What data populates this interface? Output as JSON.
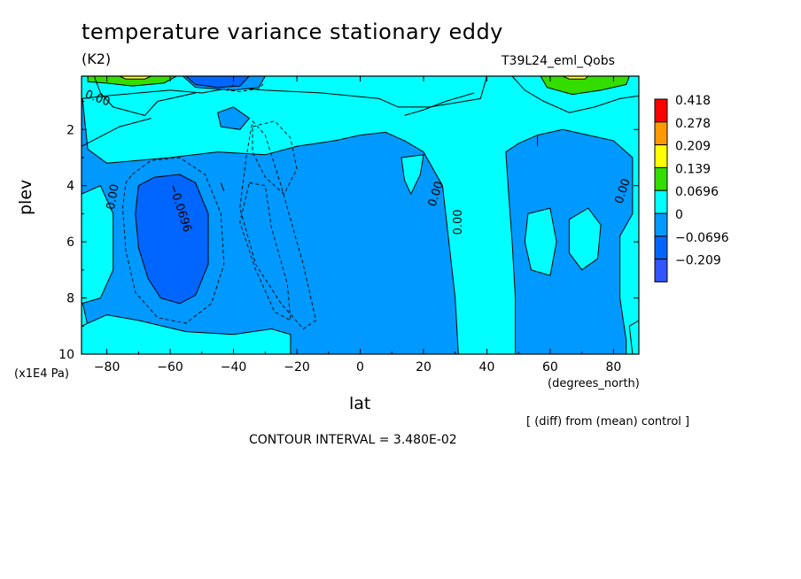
{
  "chart_data": {
    "type": "heatmap",
    "title": "temperature variance stationary eddy",
    "units": "(K2)",
    "dataset": "T39L24_eml_Qobs",
    "xlabel": "lat",
    "xunits": "(degrees_north)",
    "ylabel": "plev",
    "yunits": "(x1E4 Pa)",
    "xlim": [
      -88,
      88
    ],
    "ylim": [
      10,
      0.1
    ],
    "x_ticks": [
      -80,
      -60,
      -40,
      -20,
      0,
      20,
      40,
      60,
      80
    ],
    "x_tick_labels": [
      "−80",
      "−60",
      "−40",
      "−20",
      "0",
      "20",
      "40",
      "60",
      "80"
    ],
    "y_ticks": [
      2,
      4,
      6,
      8,
      10
    ],
    "y_tick_labels": [
      "2",
      "4",
      "6",
      "8",
      "10"
    ],
    "contour_interval_text": "CONTOUR INTERVAL = 3.480E-02",
    "footnote": "[ (diff) from (mean) control ]",
    "legend": {
      "levels": [
        "0.418",
        "0.278",
        "0.209",
        "0.139",
        "0.0696",
        "0",
        "−0.0696",
        "−0.209"
      ],
      "colors": [
        "#ff0000",
        "#ff9900",
        "#ffff00",
        "#33dd00",
        "#00ffff",
        "#0099ff",
        "#0066ff",
        "#3355ff"
      ]
    },
    "contour_labels": [
      {
        "text": "0.00",
        "lon": -83,
        "plev": 0.9,
        "rotate": 20
      },
      {
        "text": "0.00",
        "lon": -78,
        "plev": 4.4,
        "rotate": -80
      },
      {
        "text": "−0.0696",
        "lon": -57,
        "plev": 4.8,
        "rotate": 72
      },
      {
        "text": "0.00",
        "lon": 24,
        "plev": 4.3,
        "rotate": -72
      },
      {
        "text": "0.00",
        "lon": 31,
        "plev": 5.3,
        "rotate": -90
      },
      {
        "text": "0.00",
        "lon": 83,
        "plev": 4.2,
        "rotate": -72
      }
    ],
    "regions": [
      {
        "value": "0",
        "color": "#00ffff",
        "polygon": [
          [
            -88,
            0.1
          ],
          [
            88,
            0.1
          ],
          [
            88,
            10
          ],
          [
            -88,
            10
          ]
        ]
      },
      {
        "value": "0",
        "color": "#0099ff",
        "polygon": [
          [
            -88,
            0.6
          ],
          [
            -86,
            2.7
          ],
          [
            -80,
            3.2
          ],
          [
            -60,
            3.0
          ],
          [
            -45,
            2.8
          ],
          [
            -30,
            2.9
          ],
          [
            -20,
            2.6
          ],
          [
            -8,
            2.4
          ],
          [
            0,
            2.2
          ],
          [
            8,
            2.1
          ],
          [
            14,
            2.4
          ],
          [
            20,
            2.8
          ],
          [
            26,
            4.0
          ],
          [
            28,
            6.0
          ],
          [
            30,
            8.0
          ],
          [
            31,
            10
          ],
          [
            -84,
            10
          ],
          [
            -86,
            9.0
          ],
          [
            -88,
            8.0
          ]
        ]
      },
      {
        "value": "0",
        "color": "#00ffff",
        "polygon": [
          [
            -88,
            0.1
          ],
          [
            40,
            0.1
          ],
          [
            38,
            0.9
          ],
          [
            22,
            1.2
          ],
          [
            12,
            1.2
          ],
          [
            6,
            0.9
          ],
          [
            -12,
            0.7
          ],
          [
            -30,
            0.6
          ],
          [
            -40,
            0.5
          ],
          [
            -50,
            0.7
          ],
          [
            -60,
            0.6
          ],
          [
            -70,
            0.7
          ],
          [
            -80,
            0.8
          ],
          [
            -88,
            0.9
          ]
        ]
      },
      {
        "value": "0",
        "color": "#0099ff",
        "polygon": [
          [
            -45,
            1.4
          ],
          [
            -40,
            1.2
          ],
          [
            -35,
            1.6
          ],
          [
            -38,
            2.0
          ],
          [
            -44,
            1.9
          ]
        ]
      },
      {
        "value": "0",
        "color": "#0099ff",
        "polygon": [
          [
            -56,
            0.1
          ],
          [
            -30,
            0.1
          ],
          [
            -32,
            0.5
          ],
          [
            -40,
            0.6
          ],
          [
            -52,
            0.5
          ]
        ]
      },
      {
        "value": "0",
        "color": "#00ffff",
        "polygon": [
          [
            -88,
            4.3
          ],
          [
            -82,
            4.0
          ],
          [
            -78,
            5.0
          ],
          [
            -78,
            7.0
          ],
          [
            -82,
            8.0
          ],
          [
            -88,
            8.2
          ]
        ]
      },
      {
        "value": "0",
        "color": "#00ffff",
        "polygon": [
          [
            -88,
            9.0
          ],
          [
            -80,
            8.6
          ],
          [
            -70,
            8.8
          ],
          [
            -55,
            9.2
          ],
          [
            -40,
            9.3
          ],
          [
            -28,
            9.1
          ],
          [
            -22,
            9.3
          ],
          [
            -22,
            10
          ],
          [
            -88,
            10
          ]
        ]
      },
      {
        "value": "0",
        "color": "#00ffff",
        "polygon": [
          [
            13,
            3.0
          ],
          [
            20,
            2.9
          ],
          [
            19,
            3.6
          ],
          [
            16,
            4.3
          ],
          [
            14,
            3.8
          ]
        ]
      },
      {
        "value": "0",
        "color": "#0099ff",
        "polygon": [
          [
            46,
            2.8
          ],
          [
            50,
            2.5
          ],
          [
            56,
            2.2
          ],
          [
            64,
            2.0
          ],
          [
            72,
            2.2
          ],
          [
            80,
            2.4
          ],
          [
            86,
            3.0
          ],
          [
            86,
            5.0
          ],
          [
            82,
            5.8
          ],
          [
            82,
            8.0
          ],
          [
            84,
            9.5
          ],
          [
            84,
            10
          ],
          [
            49,
            10
          ],
          [
            49,
            8.0
          ],
          [
            48,
            6.0
          ],
          [
            47,
            4.5
          ]
        ]
      },
      {
        "value": "0",
        "color": "#00ffff",
        "polygon": [
          [
            53,
            5.0
          ],
          [
            60,
            4.8
          ],
          [
            62,
            6.0
          ],
          [
            60,
            7.2
          ],
          [
            54,
            7.0
          ],
          [
            52,
            6.0
          ]
        ]
      },
      {
        "value": "0",
        "color": "#00ffff",
        "polygon": [
          [
            66,
            5.2
          ],
          [
            72,
            4.8
          ],
          [
            76,
            5.4
          ],
          [
            75,
            6.6
          ],
          [
            70,
            7.0
          ],
          [
            66,
            6.4
          ]
        ]
      },
      {
        "value": "0",
        "color": "#00ffff",
        "polygon": [
          [
            85,
            9.0
          ],
          [
            88,
            8.8
          ],
          [
            88,
            10
          ],
          [
            86,
            10
          ]
        ]
      },
      {
        "value": "−0.0696",
        "color": "#0066ff",
        "polygon": [
          [
            -70,
            4.0
          ],
          [
            -65,
            3.7
          ],
          [
            -57,
            3.6
          ],
          [
            -52,
            3.9
          ],
          [
            -48,
            5.0
          ],
          [
            -48,
            6.8
          ],
          [
            -52,
            7.9
          ],
          [
            -57,
            8.2
          ],
          [
            -63,
            8.0
          ],
          [
            -67,
            7.3
          ],
          [
            -70,
            6.2
          ],
          [
            -71,
            5.0
          ]
        ]
      },
      {
        "value": "−0.0696",
        "color": "#0066ff",
        "polygon": [
          [
            -55,
            0.1
          ],
          [
            -35,
            0.1
          ],
          [
            -38,
            0.45
          ],
          [
            -45,
            0.5
          ],
          [
            -52,
            0.4
          ]
        ]
      },
      {
        "value": "0.0696",
        "color": "#33dd00",
        "polygon": [
          [
            -86,
            0.1
          ],
          [
            -58,
            0.1
          ],
          [
            -62,
            0.35
          ],
          [
            -72,
            0.45
          ],
          [
            -80,
            0.35
          ],
          [
            -86,
            0.3
          ]
        ]
      },
      {
        "value": "0.0696",
        "color": "#33dd00",
        "polygon": [
          [
            57,
            0.1
          ],
          [
            85,
            0.1
          ],
          [
            84,
            0.4
          ],
          [
            76,
            0.6
          ],
          [
            67,
            0.75
          ],
          [
            59,
            0.5
          ]
        ]
      },
      {
        "value": "0.139",
        "color": "#ffff00",
        "polygon": [
          [
            -76,
            0.1
          ],
          [
            -66,
            0.1
          ],
          [
            -68,
            0.2
          ],
          [
            -74,
            0.2
          ]
        ]
      },
      {
        "value": "0.139",
        "color": "#ffff00",
        "polygon": [
          [
            64,
            0.1
          ],
          [
            72,
            0.1
          ],
          [
            71,
            0.2
          ],
          [
            66,
            0.2
          ]
        ]
      }
    ],
    "dashed_contours": [
      [
        [
          -72,
          3.6
        ],
        [
          -66,
          3.1
        ],
        [
          -57,
          3.0
        ],
        [
          -49,
          3.6
        ],
        [
          -44,
          5.0
        ],
        [
          -43,
          6.8
        ],
        [
          -47,
          8.2
        ],
        [
          -55,
          8.9
        ],
        [
          -64,
          8.7
        ],
        [
          -71,
          7.8
        ],
        [
          -74,
          6.3
        ],
        [
          -75,
          4.8
        ],
        [
          -74,
          3.9
        ],
        [
          -72,
          3.6
        ]
      ],
      [
        [
          -34,
          1.7
        ],
        [
          -30,
          2.2
        ],
        [
          -25,
          4.0
        ],
        [
          -18,
          6.8
        ],
        [
          -14,
          8.8
        ],
        [
          -18,
          9.1
        ],
        [
          -25,
          8.2
        ],
        [
          -33,
          6.8
        ],
        [
          -38,
          4.8
        ],
        [
          -36,
          3.0
        ],
        [
          -34,
          1.7
        ]
      ],
      [
        [
          -35,
          3.9
        ],
        [
          -30,
          4.0
        ],
        [
          -28,
          5.5
        ],
        [
          -23,
          7.5
        ],
        [
          -22,
          8.8
        ],
        [
          -27,
          8.5
        ],
        [
          -33,
          7.0
        ],
        [
          -38,
          5.3
        ],
        [
          -35,
          3.9
        ]
      ],
      [
        [
          -34,
          1.9
        ],
        [
          -27,
          1.7
        ],
        [
          -22,
          2.3
        ],
        [
          -20,
          3.4
        ],
        [
          -24,
          4.3
        ],
        [
          -30,
          3.7
        ],
        [
          -34,
          2.8
        ],
        [
          -34,
          1.9
        ]
      ],
      [
        [
          -40,
          0.4
        ],
        [
          -42,
          0.6
        ],
        [
          -38,
          0.65
        ],
        [
          -32,
          0.55
        ],
        [
          -30,
          0.3
        ]
      ]
    ],
    "solid_lines": [
      [
        [
          -84,
          0.1
        ],
        [
          -82,
          0.7
        ],
        [
          -78,
          1.2
        ],
        [
          -68,
          1.5
        ],
        [
          -64,
          1.0
        ],
        [
          -52,
          0.7
        ]
      ],
      [
        [
          -88,
          2.6
        ],
        [
          -76,
          1.9
        ],
        [
          -66,
          1.6
        ]
      ],
      [
        [
          48,
          0.1
        ],
        [
          52,
          0.6
        ],
        [
          58,
          1.0
        ],
        [
          66,
          1.4
        ],
        [
          74,
          1.2
        ],
        [
          82,
          0.9
        ],
        [
          88,
          0.8
        ]
      ],
      [
        [
          36,
          0.7
        ],
        [
          27,
          1.0
        ],
        [
          20,
          1.3
        ],
        [
          14,
          1.5
        ]
      ],
      [
        [
          56,
          2.2
        ],
        [
          56,
          2.6
        ]
      ],
      [
        [
          -44,
          3.9
        ],
        [
          -43,
          4.2
        ]
      ]
    ]
  }
}
